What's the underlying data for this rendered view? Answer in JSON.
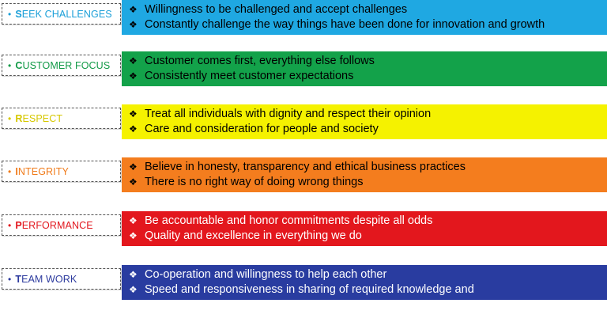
{
  "values": [
    {
      "label_first": "S",
      "label_rest": "EEK CHALLENGES",
      "label_color": "#1a9fd8",
      "band_color": "#1fa8e2",
      "text_color": "#000000",
      "lines": [
        "Willingness to be challenged and accept challenges",
        "Constantly challenge the way things have been done for innovation and  growth"
      ]
    },
    {
      "label_first": "C",
      "label_rest": "USTOMER FOCUS",
      "label_color": "#129a47",
      "band_color": "#13a24a",
      "text_color": "#000000",
      "lines": [
        "Customer comes first, everything else follows",
        "Consistently meet customer expectations"
      ]
    },
    {
      "label_first": "R",
      "label_rest": "ESPECT",
      "label_color": "#d6c800",
      "band_color": "#f5f200",
      "text_color": "#000000",
      "lines": [
        "Treat all individuals with dignity and respect their opinion",
        "Care and consideration for people and society"
      ]
    },
    {
      "label_first": "I",
      "label_rest": "NTEGRITY",
      "label_color": "#f07b1a",
      "band_color": "#f47d1e",
      "text_color": "#000000",
      "lines": [
        "Believe in honesty,  transparency and ethical business practices",
        "There is no right way of doing wrong things"
      ]
    },
    {
      "label_first": "P",
      "label_rest": "ERFORMANCE",
      "label_color": "#e2161d",
      "band_color": "#e3171d",
      "text_color": "#ffffff",
      "lines": [
        "Be accountable and honor commitments despite all odds",
        "Quality and excellence in everything we do"
      ]
    },
    {
      "label_first": "T",
      "label_rest": "EAM WORK",
      "label_color": "#2c3a9e",
      "band_color": "#293ca0",
      "text_color": "#ffffff",
      "lines": [
        "Co-operation and willingness to help each other",
        "Speed and responsiveness in sharing of required knowledge and"
      ]
    }
  ]
}
